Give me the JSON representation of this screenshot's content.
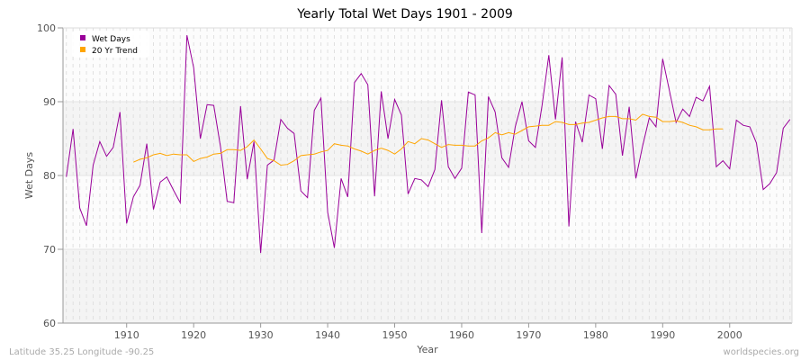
{
  "chart_data": {
    "type": "line",
    "title": "Yearly Total Wet Days 1901 - 2009",
    "xlabel": "Year",
    "ylabel": "Wet Days",
    "xlim": [
      1900.5,
      2009.3
    ],
    "ylim": [
      60,
      100
    ],
    "xticks": [
      1910,
      1920,
      1930,
      1940,
      1950,
      1960,
      1970,
      1980,
      1990,
      2000
    ],
    "yticks": [
      60,
      70,
      80,
      90,
      100
    ],
    "grid": true,
    "legend_position": "top-left",
    "series": [
      {
        "name": "Wet Days",
        "color": "#990099",
        "x_start": 1901,
        "values": [
          79.8,
          86.3,
          75.6,
          73.2,
          81.4,
          84.6,
          82.6,
          83.8,
          88.6,
          73.5,
          77.1,
          78.7,
          84.3,
          75.4,
          79.1,
          79.8,
          78.0,
          76.3,
          99.0,
          94.6,
          85.0,
          89.6,
          89.5,
          83.9,
          76.5,
          76.3,
          89.4,
          79.5,
          84.6,
          69.5,
          81.4,
          82.1,
          87.6,
          86.4,
          85.7,
          77.9,
          77.0,
          88.8,
          90.5,
          75.0,
          70.2,
          79.6,
          77.1,
          92.6,
          93.8,
          92.3,
          77.2,
          91.4,
          85.0,
          90.3,
          88.2,
          77.5,
          79.6,
          79.4,
          78.5,
          80.8,
          90.2,
          81.2,
          79.6,
          81.0,
          91.3,
          90.9,
          72.2,
          90.7,
          88.6,
          82.4,
          81.1,
          86.6,
          90.0,
          84.7,
          83.8,
          89.5,
          96.3,
          87.6,
          96.0,
          73.1,
          87.3,
          84.5,
          90.9,
          90.4,
          83.6,
          92.2,
          91.0,
          82.7,
          89.3,
          79.6,
          84.0,
          87.8,
          86.6,
          95.8,
          91.5,
          87.2,
          89.0,
          88.0,
          90.6,
          90.1,
          92.1,
          81.2,
          82.0,
          80.9,
          87.5,
          86.8,
          86.6,
          84.4,
          78.1,
          78.9,
          80.4,
          86.4,
          87.6
        ]
      },
      {
        "name": "20 Yr Trend",
        "color": "#ffa500",
        "x_start": 1911,
        "values": [
          81.8,
          82.2,
          82.4,
          82.8,
          83.0,
          82.7,
          82.9,
          82.8,
          82.8,
          81.9,
          82.3,
          82.5,
          82.9,
          83.0,
          83.5,
          83.5,
          83.4,
          83.9,
          84.8,
          83.6,
          82.3,
          82.0,
          81.4,
          81.5,
          82.0,
          82.7,
          82.8,
          82.9,
          83.2,
          83.4,
          84.3,
          84.1,
          84.0,
          83.6,
          83.3,
          82.9,
          83.4,
          83.7,
          83.4,
          82.9,
          83.6,
          84.6,
          84.3,
          85.0,
          84.8,
          84.3,
          83.8,
          84.2,
          84.1,
          84.1,
          84.0,
          84.0,
          84.7,
          85.1,
          85.8,
          85.5,
          85.8,
          85.6,
          86.1,
          86.6,
          86.7,
          86.8,
          86.8,
          87.3,
          87.2,
          86.9,
          86.9,
          87.1,
          87.2,
          87.5,
          87.8,
          88.0,
          88.0,
          87.7,
          87.7,
          87.5,
          88.3,
          88.0,
          87.9,
          87.3,
          87.3,
          87.4,
          87.2,
          86.8,
          86.6,
          86.2,
          86.2,
          86.3,
          86.3
        ]
      }
    ]
  },
  "footer": {
    "location": "Latitude 35.25 Longitude -90.25",
    "source": "worldspecies.org"
  }
}
